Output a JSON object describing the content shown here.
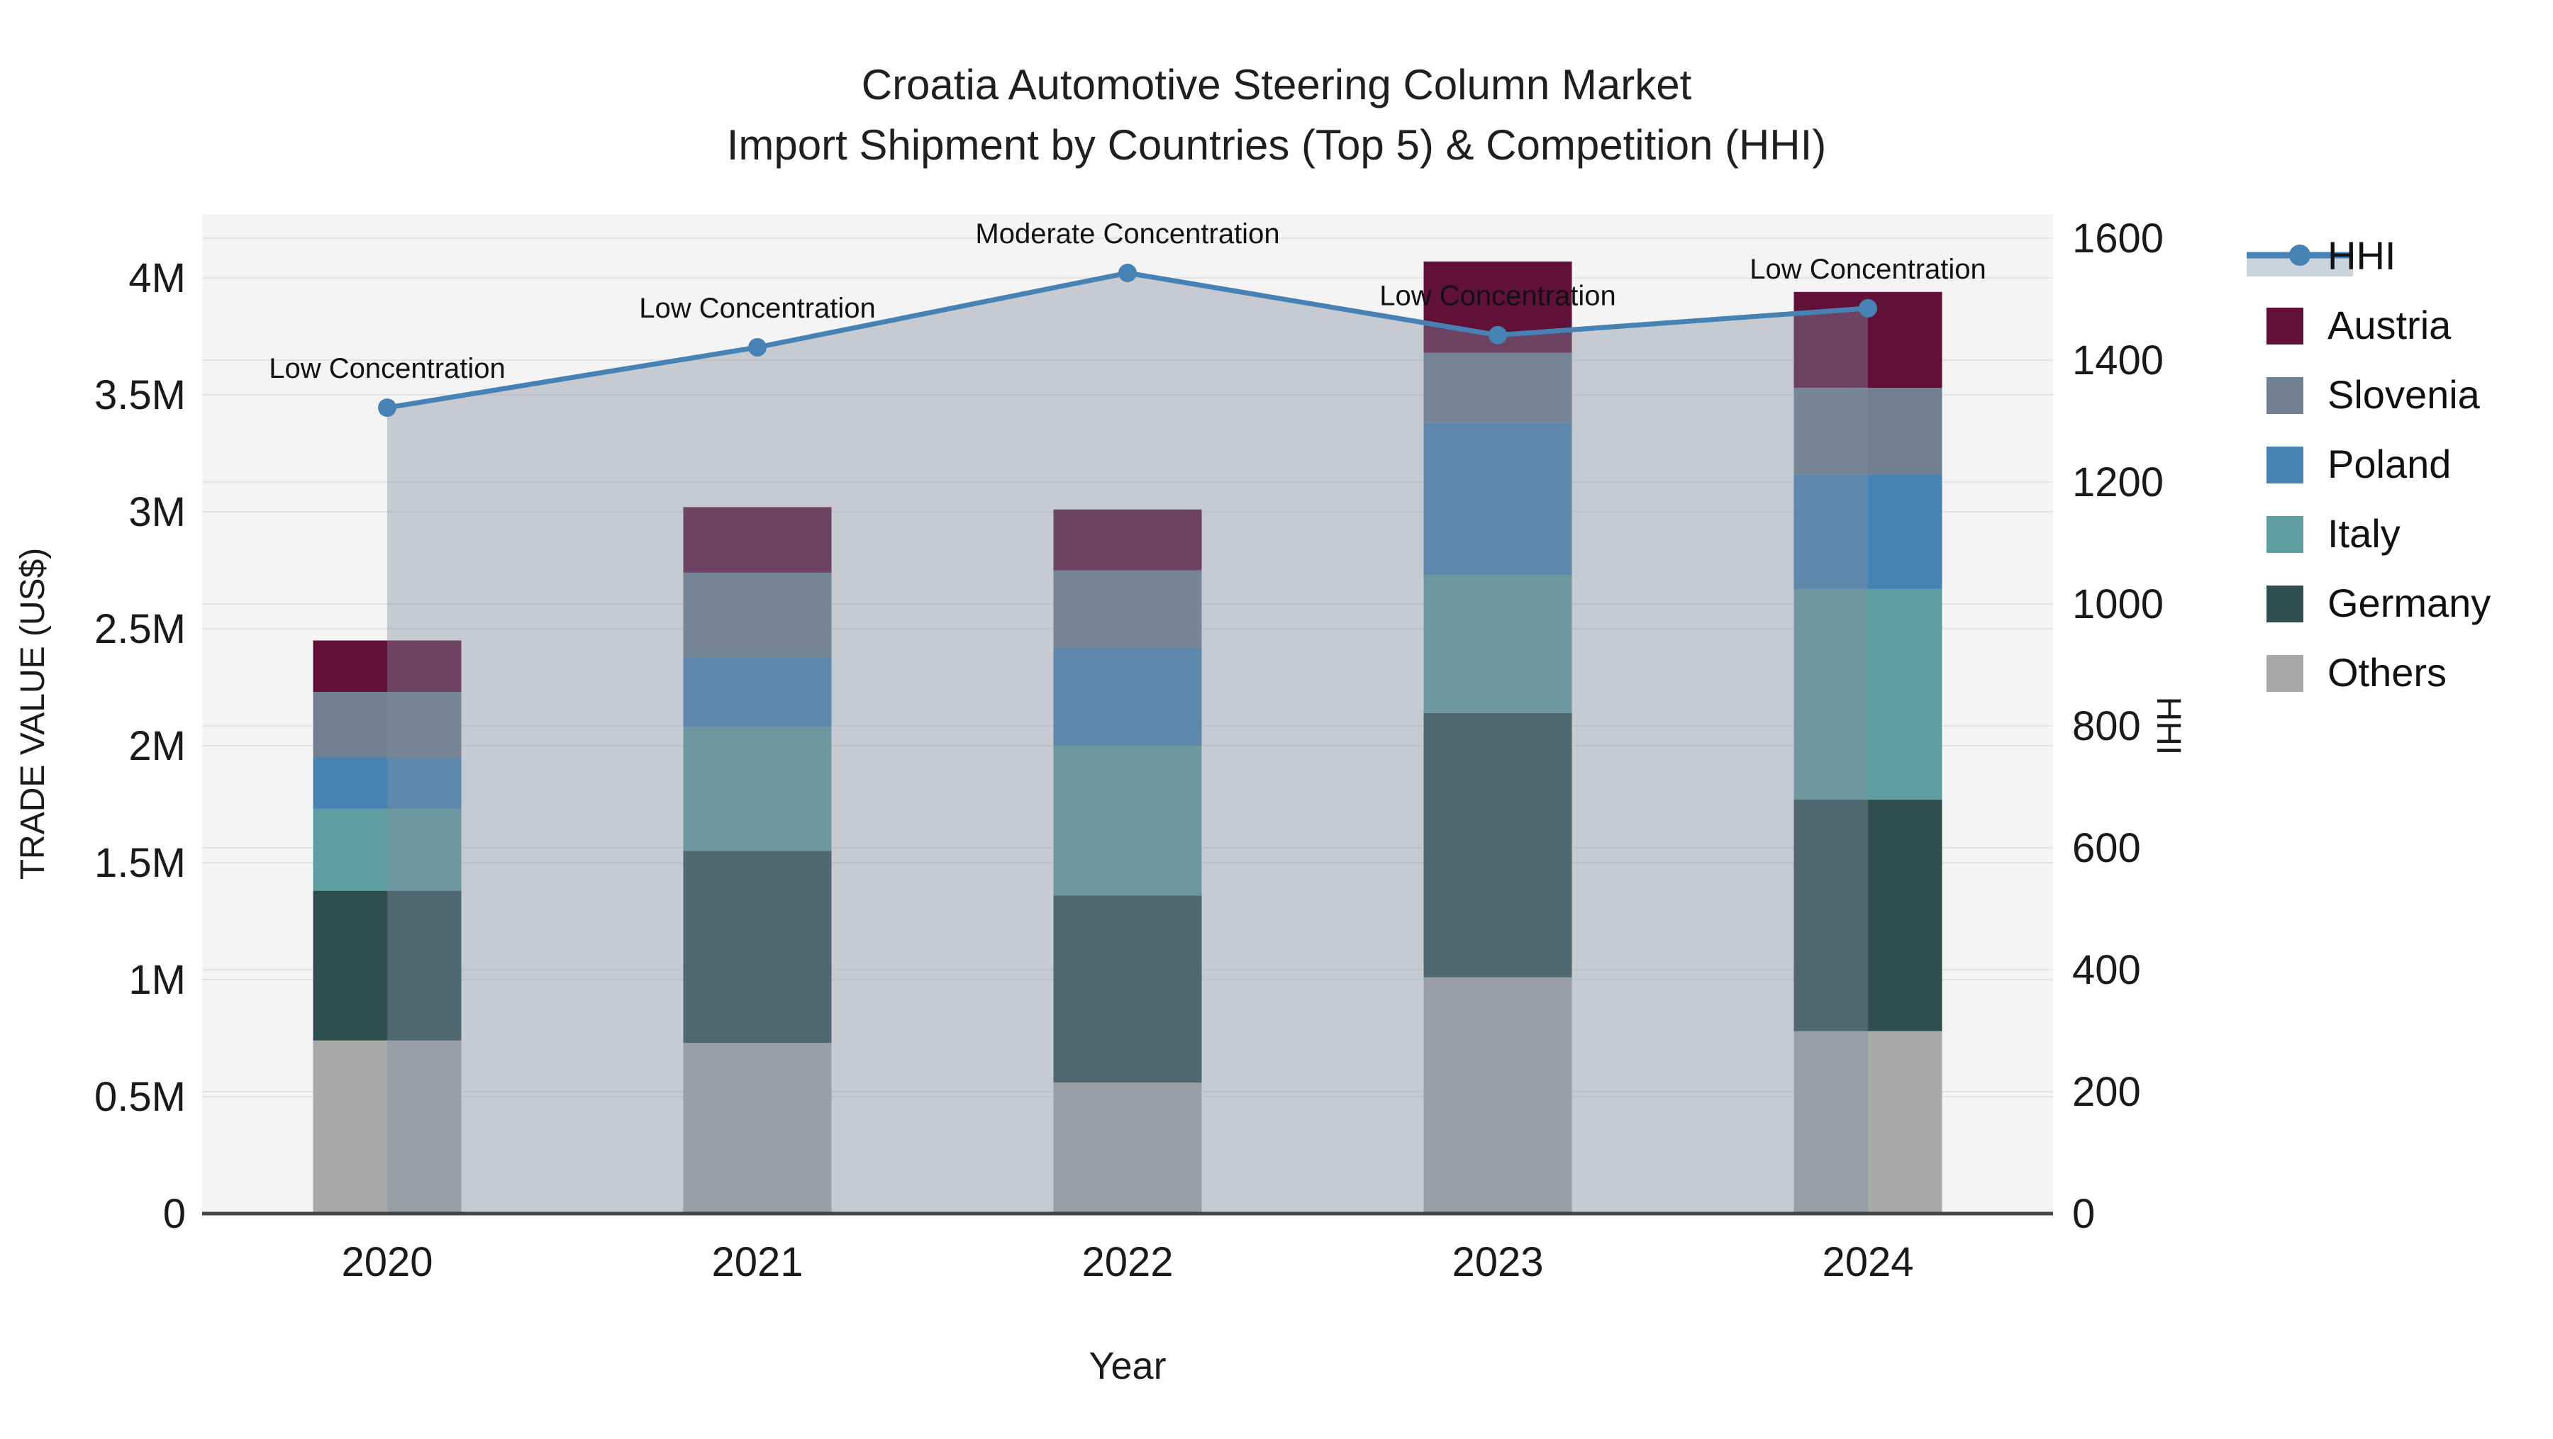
{
  "title": {
    "line1": "Croatia Automotive Steering Column Market",
    "line2": "Import Shipment by Countries (Top 5) & Competition (HHI)"
  },
  "chart_data": {
    "type": "bar+line combo (stacked bars, secondary-axis line)",
    "categories": [
      "2020",
      "2021",
      "2022",
      "2023",
      "2024"
    ],
    "series": [
      {
        "name": "Austria",
        "color": "#611138",
        "values": [
          0.22,
          0.28,
          0.26,
          0.39,
          0.41
        ]
      },
      {
        "name": "Slovenia",
        "color": "#708090",
        "values": [
          0.28,
          0.36,
          0.33,
          0.3,
          0.37
        ]
      },
      {
        "name": "Poland",
        "color": "#4682b4",
        "values": [
          0.22,
          0.3,
          0.42,
          0.65,
          0.49
        ]
      },
      {
        "name": "Italy",
        "color": "#5f9ea0",
        "values": [
          0.35,
          0.53,
          0.64,
          0.59,
          0.9
        ]
      },
      {
        "name": "Germany",
        "color": "#2f4f4f",
        "values": [
          0.64,
          0.82,
          0.8,
          1.13,
          0.99
        ]
      },
      {
        "name": "Others",
        "color": "#a9a9a9",
        "values": [
          0.74,
          0.73,
          0.56,
          1.01,
          0.78
        ]
      }
    ],
    "stack_totals_musd": [
      2.45,
      3.02,
      3.01,
      4.07,
      3.94
    ],
    "hhi": {
      "name": "HHI",
      "color": "#4682b4",
      "fill_color": "rgba(130,143,160,0.40)",
      "values": [
        1322,
        1421,
        1543,
        1441,
        1485
      ]
    },
    "annotations": [
      "Low Concentration",
      "Low Concentration",
      "Moderate Concentration",
      "Low Concentration",
      "Low Concentration"
    ],
    "xaxis": {
      "title": "Year"
    },
    "yaxis_left": {
      "title": "TRADE VALUE (US$)",
      "ticks": [
        "0",
        "0.5M",
        "1M",
        "1.5M",
        "2M",
        "2.5M",
        "3M",
        "3.5M",
        "4M"
      ],
      "tick_values_musd": [
        0,
        0.5,
        1,
        1.5,
        2,
        2.5,
        3,
        3.5,
        4
      ],
      "range_musd": [
        0,
        4.27
      ]
    },
    "yaxis_right": {
      "title": "HHI",
      "ticks": [
        "0",
        "200",
        "400",
        "600",
        "800",
        "1000",
        "1200",
        "1400",
        "1600"
      ],
      "tick_values": [
        0,
        200,
        400,
        600,
        800,
        1000,
        1200,
        1400,
        1600
      ],
      "range": [
        0,
        1640
      ]
    },
    "grid": true,
    "legend_position": "right",
    "plot_bg": "#f4f4f4",
    "grid_color": "#e3e3e3",
    "axis_line_color": "#444444",
    "text_color": "#1a1a1a"
  },
  "legend": {
    "hhi_label": "HHI",
    "items": [
      "HHI",
      "Austria",
      "Slovenia",
      "Poland",
      "Italy",
      "Germany",
      "Others"
    ]
  }
}
